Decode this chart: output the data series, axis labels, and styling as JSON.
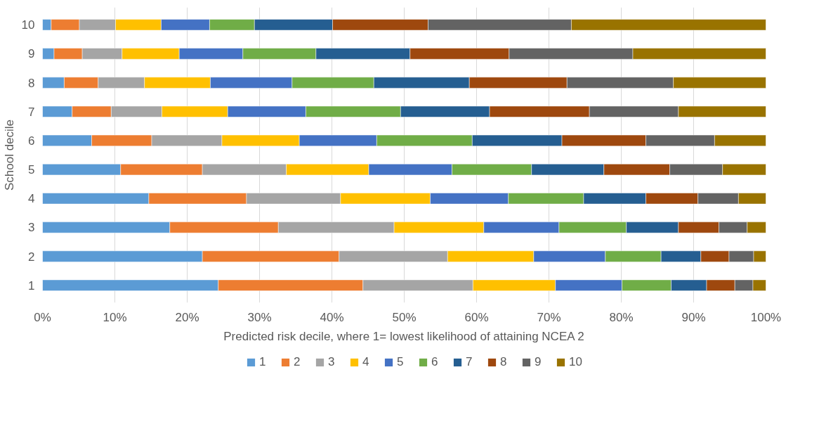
{
  "chart_data": {
    "type": "bar",
    "orientation": "horizontal",
    "stacked": true,
    "xlabel": "Predicted risk decile, where 1= lowest likelihood of attaining NCEA 2",
    "ylabel": "School decile",
    "categories": [
      "10",
      "9",
      "8",
      "7",
      "6",
      "5",
      "4",
      "3",
      "2",
      "1"
    ],
    "xlim": [
      0,
      100
    ],
    "xticks": [
      {
        "value": 0,
        "label": "0%"
      },
      {
        "value": 10,
        "label": "10%"
      },
      {
        "value": 20,
        "label": "20%"
      },
      {
        "value": 30,
        "label": "30%"
      },
      {
        "value": 40,
        "label": "40%"
      },
      {
        "value": 50,
        "label": "50%"
      },
      {
        "value": 60,
        "label": "60%"
      },
      {
        "value": 70,
        "label": "70%"
      },
      {
        "value": 80,
        "label": "80%"
      },
      {
        "value": 90,
        "label": "90%"
      },
      {
        "value": 100,
        "label": "100%"
      }
    ],
    "grid": "x",
    "legend": "bottom",
    "series": [
      {
        "name": "1",
        "color": "#5b9bd5",
        "values": [
          1.2,
          1.6,
          3.0,
          4.1,
          6.8,
          10.8,
          14.7,
          17.6,
          22.1,
          24.3
        ]
      },
      {
        "name": "2",
        "color": "#ed7d31",
        "values": [
          3.9,
          3.9,
          4.7,
          5.4,
          8.3,
          11.3,
          13.5,
          15.0,
          18.9,
          20.0
        ]
      },
      {
        "name": "3",
        "color": "#a5a5a5",
        "values": [
          5.0,
          5.5,
          6.4,
          7.0,
          9.7,
          11.6,
          13.0,
          16.0,
          15.0,
          15.2
        ]
      },
      {
        "name": "4",
        "color": "#ffc000",
        "values": [
          6.3,
          7.9,
          9.1,
          9.1,
          10.7,
          11.4,
          12.4,
          12.4,
          11.9,
          11.4
        ]
      },
      {
        "name": "5",
        "color": "#4472c4",
        "values": [
          6.7,
          8.8,
          11.3,
          10.8,
          10.7,
          11.5,
          10.8,
          10.4,
          9.9,
          9.2
        ]
      },
      {
        "name": "6",
        "color": "#70ad47",
        "values": [
          6.2,
          10.1,
          11.3,
          13.1,
          13.2,
          11.0,
          10.4,
          9.3,
          7.7,
          6.8
        ]
      },
      {
        "name": "7",
        "color": "#255e91",
        "values": [
          10.8,
          13.0,
          13.2,
          12.3,
          12.4,
          10.0,
          8.6,
          7.2,
          5.5,
          4.9
        ]
      },
      {
        "name": "8",
        "color": "#9e480e",
        "values": [
          13.2,
          13.7,
          13.5,
          13.8,
          11.6,
          9.1,
          7.2,
          5.6,
          3.9,
          3.9
        ]
      },
      {
        "name": "9",
        "color": "#636363",
        "values": [
          19.8,
          17.1,
          14.7,
          12.3,
          9.5,
          7.3,
          5.6,
          3.9,
          3.4,
          2.5
        ]
      },
      {
        "name": "10",
        "color": "#997300",
        "values": [
          26.9,
          18.4,
          12.8,
          12.1,
          7.1,
          6.0,
          3.8,
          2.6,
          1.7,
          1.8
        ]
      }
    ]
  }
}
